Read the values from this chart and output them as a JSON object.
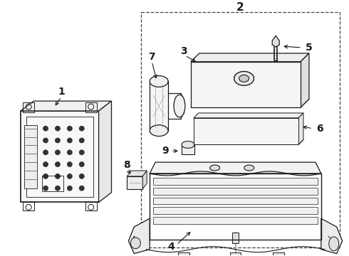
{
  "bg_color": "#ffffff",
  "line_color": "#1a1a1a",
  "fig_width": 4.9,
  "fig_height": 3.6,
  "dpi": 100,
  "border_dash": [
    4,
    3
  ],
  "border_lw": 0.8,
  "component_lw": 0.9,
  "label_fontsize": 10,
  "label_fontweight": "bold"
}
